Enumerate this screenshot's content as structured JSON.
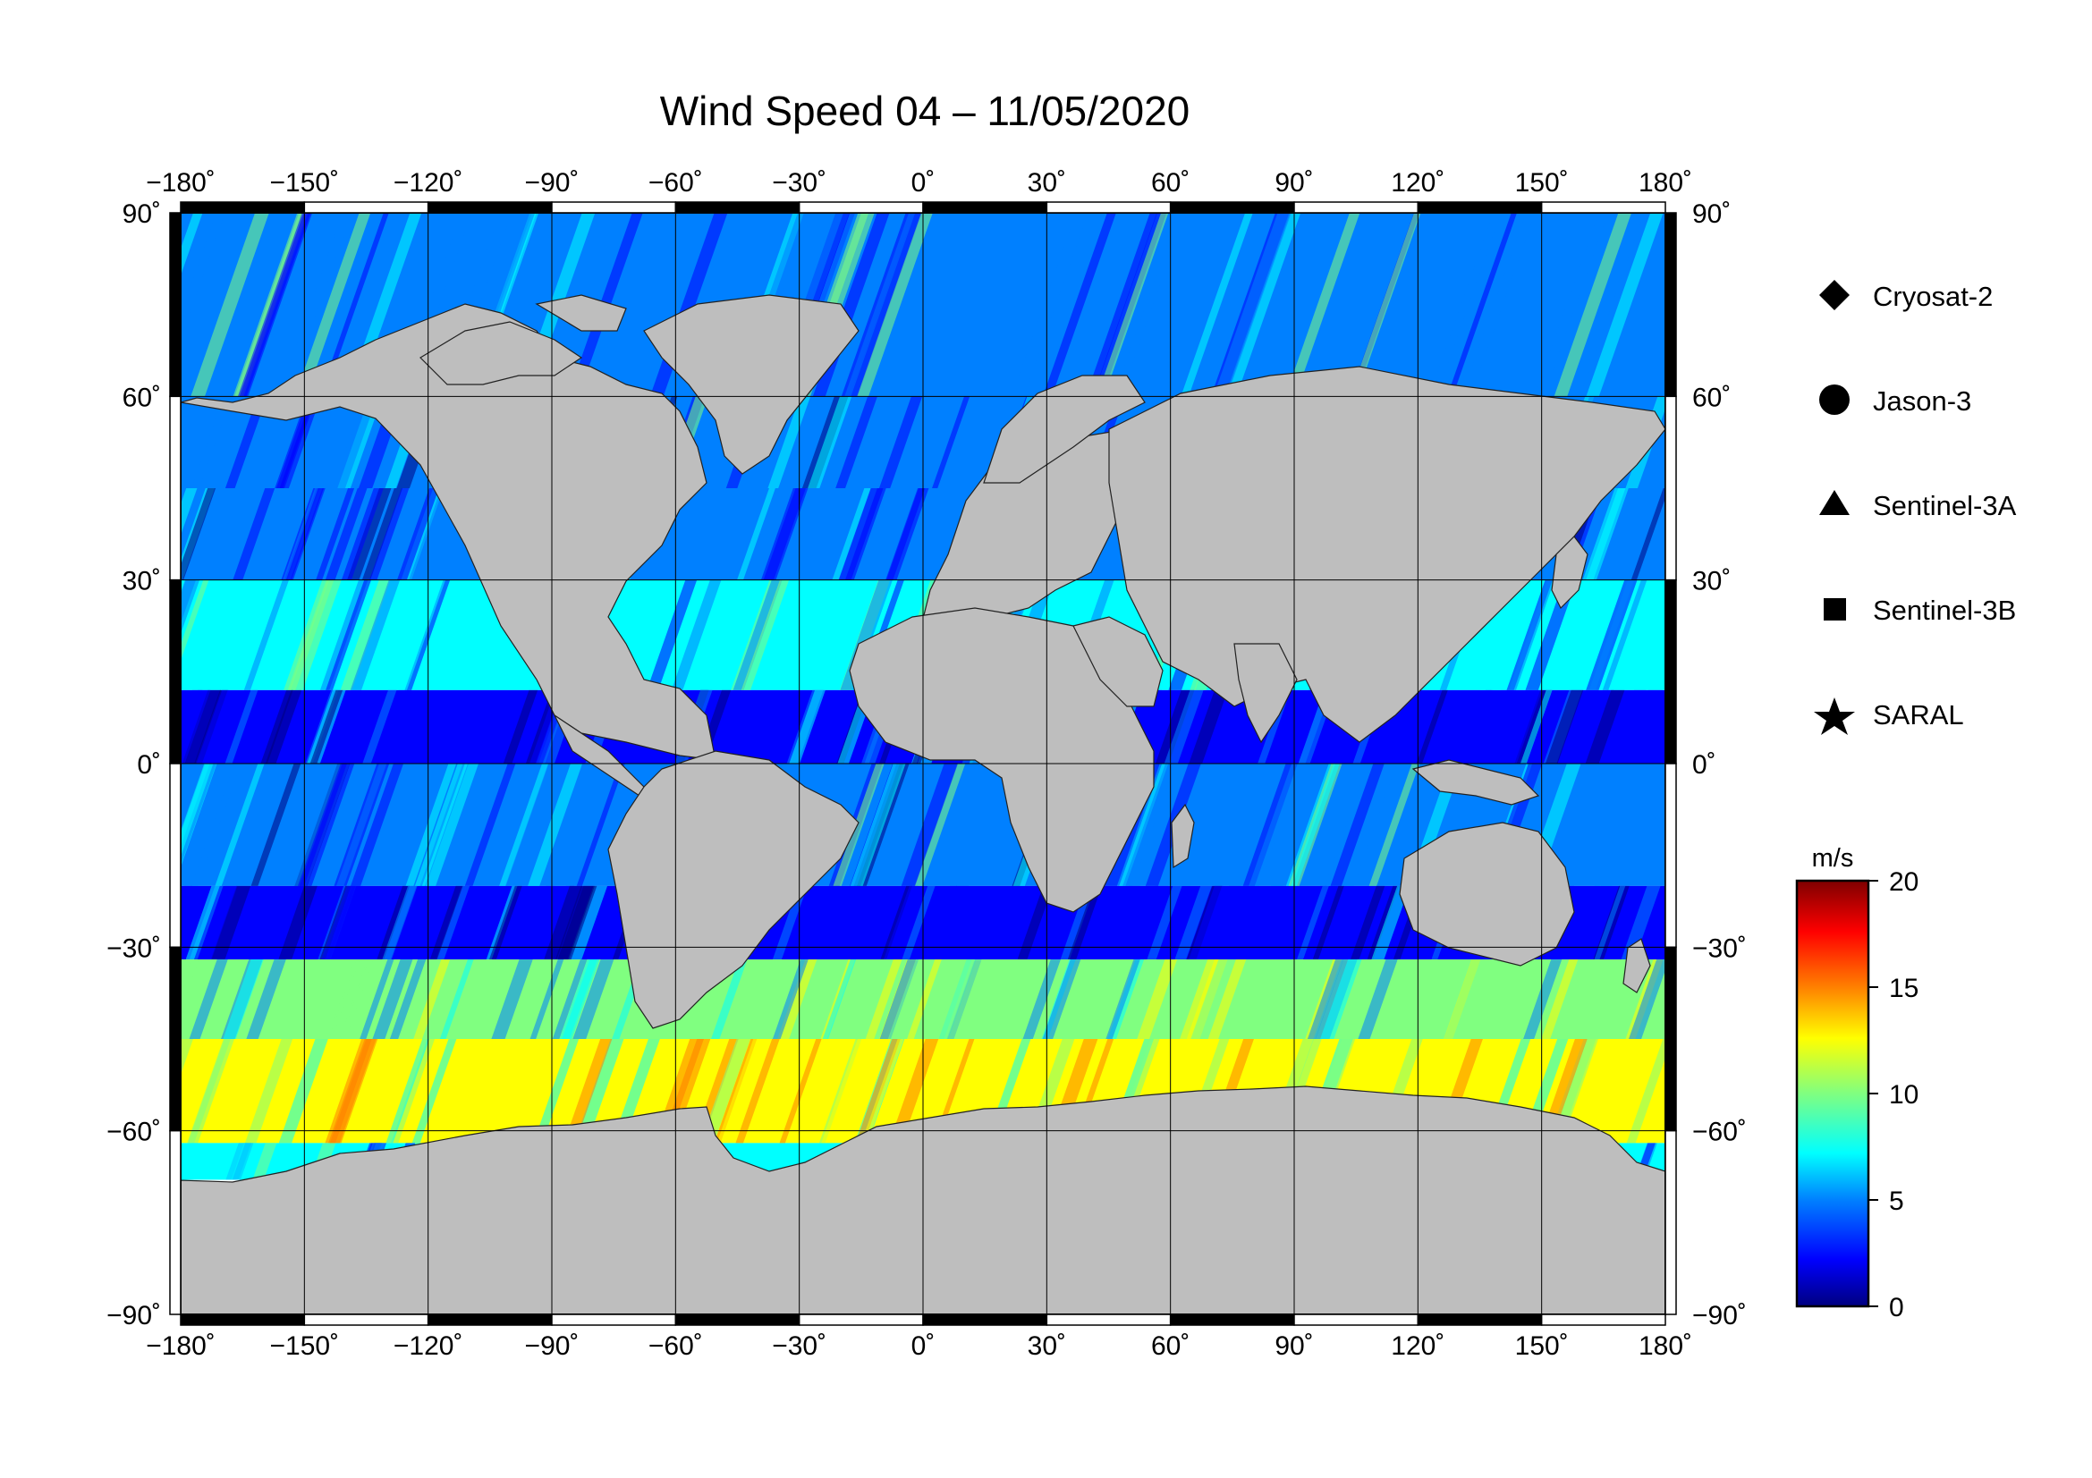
{
  "title": "Wind Speed 04 – 11/05/2020",
  "map": {
    "projection": "equirectangular",
    "lon_range": [
      -180,
      180
    ],
    "lat_range": [
      -90,
      90
    ],
    "lon_ticks": [
      {
        "value": -180,
        "label": "−180˚"
      },
      {
        "value": -150,
        "label": "−150˚"
      },
      {
        "value": -120,
        "label": "−120˚"
      },
      {
        "value": -90,
        "label": "−90˚"
      },
      {
        "value": -60,
        "label": "−60˚"
      },
      {
        "value": -30,
        "label": "−30˚"
      },
      {
        "value": 0,
        "label": "0˚"
      },
      {
        "value": 30,
        "label": "30˚"
      },
      {
        "value": 60,
        "label": "60˚"
      },
      {
        "value": 90,
        "label": "90˚"
      },
      {
        "value": 120,
        "label": "120˚"
      },
      {
        "value": 150,
        "label": "150˚"
      },
      {
        "value": 180,
        "label": "180˚"
      }
    ],
    "lat_ticks": [
      {
        "value": 90,
        "label": "90˚"
      },
      {
        "value": 60,
        "label": "60˚"
      },
      {
        "value": 30,
        "label": "30˚"
      },
      {
        "value": 0,
        "label": "0˚"
      },
      {
        "value": -30,
        "label": "−30˚"
      },
      {
        "value": -60,
        "label": "−60˚"
      },
      {
        "value": -90,
        "label": "−90˚"
      }
    ],
    "land_color": "#bebebe",
    "ice_color": "#ffffff"
  },
  "legend": {
    "items": [
      {
        "label": "Cryosat-2",
        "symbol": "diamond"
      },
      {
        "label": "Jason-3",
        "symbol": "circle"
      },
      {
        "label": "Sentinel-3A",
        "symbol": "triangle"
      },
      {
        "label": "Sentinel-3B",
        "symbol": "square"
      },
      {
        "label": "SARAL",
        "symbol": "star"
      }
    ]
  },
  "colorbar": {
    "unit": "m/s",
    "min": 0,
    "max": 20,
    "ticks": [
      {
        "value": 20,
        "label": "20"
      },
      {
        "value": 15,
        "label": "15"
      },
      {
        "value": 10,
        "label": "10"
      },
      {
        "value": 5,
        "label": "5"
      },
      {
        "value": 0,
        "label": "0"
      }
    ],
    "colormap": [
      "#00007f",
      "#0000ff",
      "#0080ff",
      "#00ffff",
      "#80ff80",
      "#ffff00",
      "#ff8000",
      "#ff0000",
      "#7f0000"
    ]
  },
  "wind_bands": [
    {
      "lat_from": 90,
      "lat_to": 60,
      "speed": 7
    },
    {
      "lat_from": 60,
      "lat_to": 45,
      "speed": 6
    },
    {
      "lat_from": 45,
      "lat_to": 30,
      "speed": 5
    },
    {
      "lat_from": 30,
      "lat_to": 12,
      "speed": 8
    },
    {
      "lat_from": 12,
      "lat_to": 0,
      "speed": 4
    },
    {
      "lat_from": 0,
      "lat_to": -20,
      "speed": 6
    },
    {
      "lat_from": -20,
      "lat_to": -32,
      "speed": 4
    },
    {
      "lat_from": -32,
      "lat_to": -45,
      "speed": 10
    },
    {
      "lat_from": -45,
      "lat_to": -62,
      "speed": 13
    },
    {
      "lat_from": -62,
      "lat_to": -68,
      "speed": 8
    }
  ]
}
